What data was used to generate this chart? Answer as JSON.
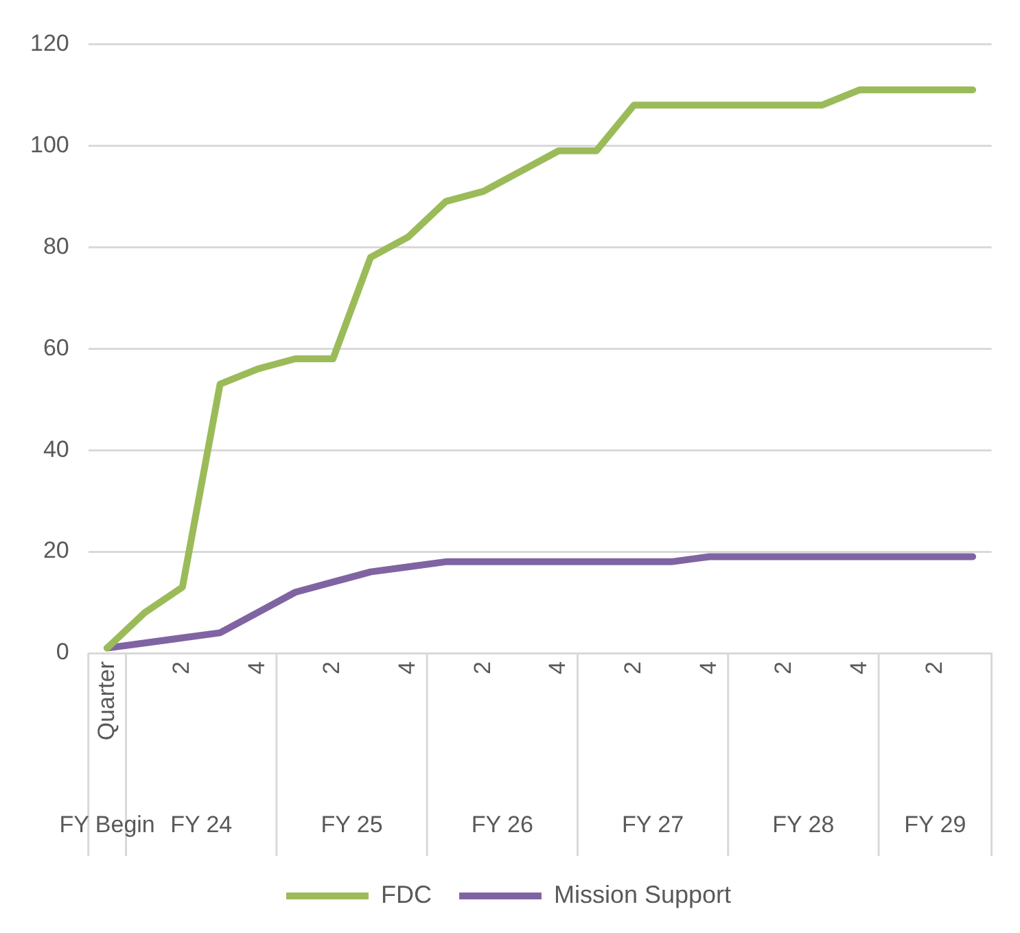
{
  "chart_data": {
    "type": "line",
    "categories": [
      "Quarter",
      null,
      "2",
      null,
      "4",
      null,
      "2",
      null,
      "4",
      null,
      "2",
      null,
      "4",
      null,
      "2",
      null,
      "4",
      null,
      "2",
      null,
      "4",
      null,
      "2",
      null
    ],
    "series": [
      {
        "name": "FDC",
        "color": "#9bbb59",
        "values": [
          1,
          8,
          13,
          53,
          56,
          58,
          58,
          78,
          82,
          89,
          91,
          95,
          99,
          99,
          108,
          108,
          108,
          108,
          108,
          108,
          111,
          111,
          111,
          111
        ]
      },
      {
        "name": "Mission Support",
        "color": "#8064a2",
        "values": [
          1,
          2,
          3,
          4,
          8,
          12,
          14,
          16,
          17,
          18,
          18,
          18,
          18,
          18,
          18,
          18,
          19,
          19,
          19,
          19,
          19,
          19,
          19,
          19
        ]
      }
    ],
    "annotations": [
      "FY Begin",
      "FY 24",
      "FY 25",
      "FY 26",
      "FY 27",
      "FY 28",
      "FY 29"
    ],
    "ylim": [
      0,
      120
    ],
    "yticks": [
      0,
      20,
      40,
      60,
      80,
      100,
      120
    ],
    "grid": "y",
    "legend": "bottom",
    "marker": "none",
    "line_style": "solid"
  }
}
